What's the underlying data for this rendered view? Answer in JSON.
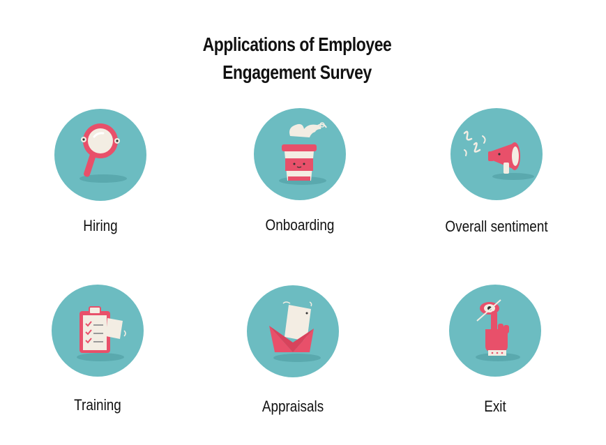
{
  "title": {
    "line1": "Applications of Employee",
    "line2": "Engagement Survey"
  },
  "colors": {
    "circle": "#6cbcc1",
    "accent": "#e8506a",
    "cream": "#f3ede3",
    "text": "#111111"
  },
  "items": [
    {
      "label": "Hiring",
      "icon": "magnifier-icon"
    },
    {
      "label": "Onboarding",
      "icon": "coffee-cup-icon"
    },
    {
      "label": "Overall sentiment",
      "icon": "megaphone-icon"
    },
    {
      "label": "Training",
      "icon": "clipboard-checklist-icon"
    },
    {
      "label": "Appraisals",
      "icon": "envelope-letter-icon"
    },
    {
      "label": "Exit",
      "icon": "hand-pointing-eye-icon"
    }
  ]
}
